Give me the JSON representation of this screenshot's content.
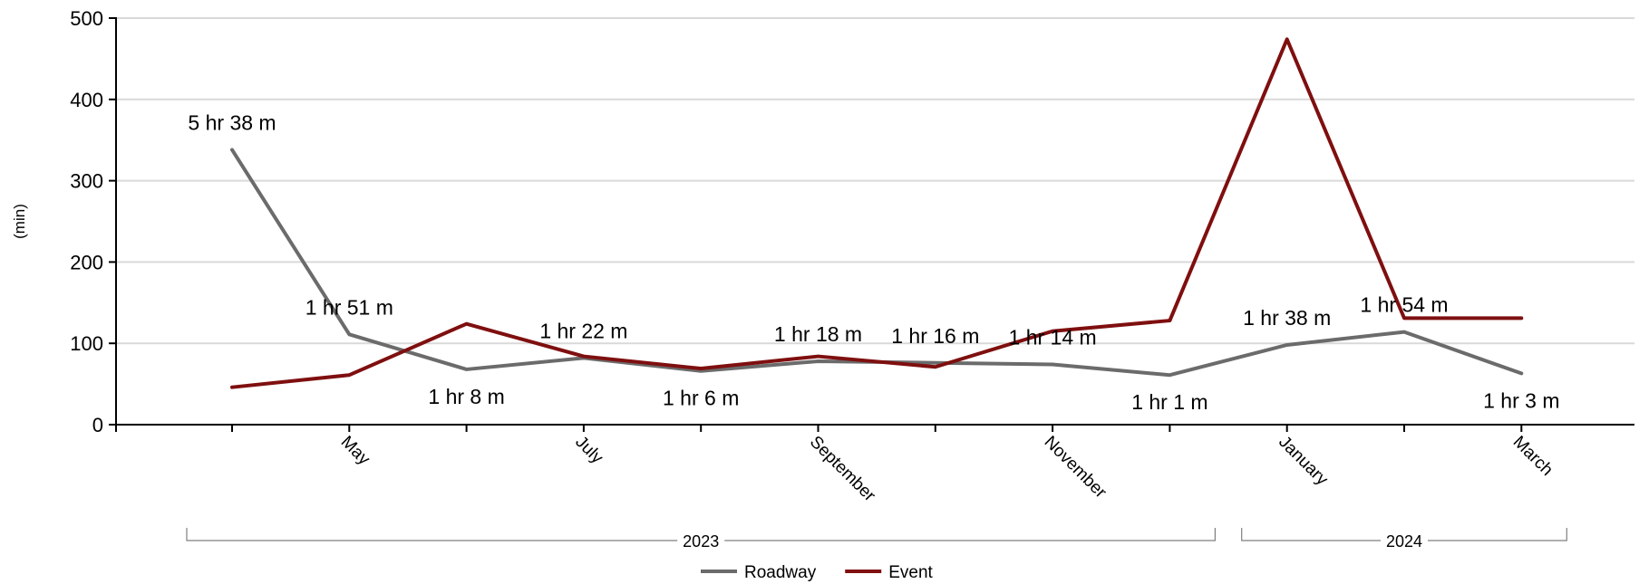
{
  "chart_data": {
    "type": "line",
    "title": "",
    "ylabel": "(min)",
    "ylim": [
      0,
      500
    ],
    "yticks": [
      0,
      100,
      200,
      300,
      400,
      500
    ],
    "ytick_labels": [
      "0",
      "100",
      "200",
      "300",
      "400",
      "500"
    ],
    "x": [
      "2023-04",
      "2023-05",
      "2023-06",
      "2023-07",
      "2023-08",
      "2023-09",
      "2023-10",
      "2023-11",
      "2023-12",
      "2024-01",
      "2024-02",
      "2024-03"
    ],
    "month_labels": [
      {
        "x": "2023-05",
        "text": "May"
      },
      {
        "x": "2023-07",
        "text": "July"
      },
      {
        "x": "2023-09",
        "text": "September"
      },
      {
        "x": "2023-11",
        "text": "November"
      },
      {
        "x": "2024-01",
        "text": "January"
      },
      {
        "x": "2024-03",
        "text": "March"
      }
    ],
    "year_groups": [
      {
        "label": "2023",
        "from": "2023-04",
        "to": "2023-12"
      },
      {
        "label": "2024",
        "from": "2024-01",
        "to": "2024-03"
      }
    ],
    "series": [
      {
        "name": "Roadway",
        "color": "#6b6b6b",
        "values": [
          338,
          111,
          68,
          82,
          66,
          78,
          76,
          74,
          61,
          98,
          114,
          63
        ],
        "labels": [
          "5 hr 38 m",
          "1 hr 51 m",
          "1 hr 8 m",
          "1 hr 22 m",
          "1 hr 6 m",
          "1 hr 18 m",
          "1 hr 16 m",
          "1 hr 14 m",
          "1 hr 1 m",
          "1 hr 38 m",
          "1 hr 54 m",
          "1 hr 3 m"
        ],
        "label_positions": [
          "above",
          "above",
          "below",
          "above",
          "below",
          "above",
          "above",
          "above",
          "below",
          "above",
          "above",
          "below"
        ]
      },
      {
        "name": "Event",
        "color": "#7f0f0f",
        "values": [
          46,
          61,
          124,
          84,
          69,
          84,
          71,
          115,
          128,
          474,
          131,
          131
        ]
      }
    ],
    "grid": true,
    "legend_position": "bottom-center"
  }
}
